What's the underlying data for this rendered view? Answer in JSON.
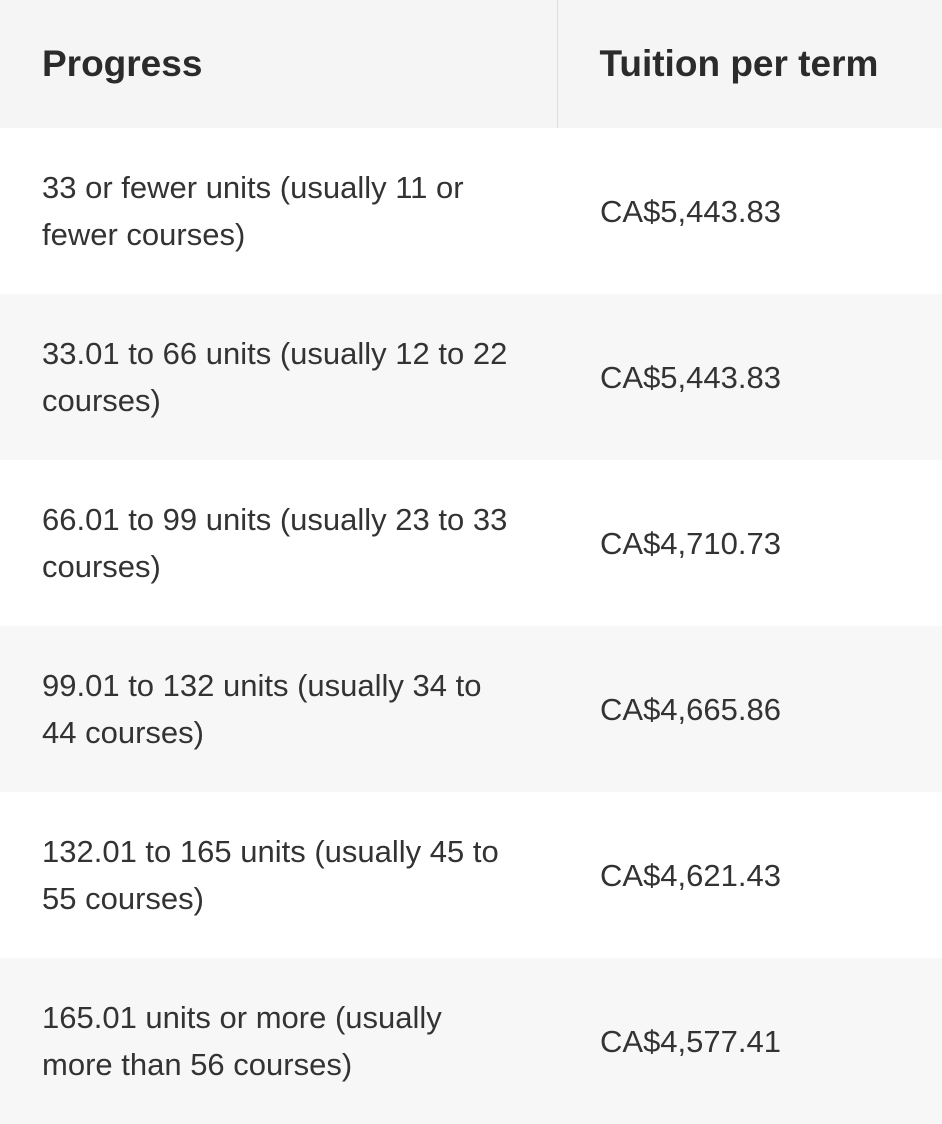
{
  "table": {
    "headers": {
      "progress": "Progress",
      "tuition": "Tuition per term"
    },
    "rows": [
      {
        "progress": "33 or fewer units (usually 11 or fewer courses)",
        "tuition": "CA$5,443.83"
      },
      {
        "progress": "33.01 to 66 units (usually 12 to 22 courses)",
        "tuition": "CA$5,443.83"
      },
      {
        "progress": "66.01 to 99 units (usually 23 to 33 courses)",
        "tuition": "CA$4,710.73"
      },
      {
        "progress": "99.01 to 132 units (usually 34 to 44 courses)",
        "tuition": "CA$4,665.86"
      },
      {
        "progress": "132.01 to 165 units (usually 45 to 55 courses)",
        "tuition": "CA$4,621.43"
      },
      {
        "progress": "165.01 units or more (usually more than 56 courses)",
        "tuition": "CA$4,577.41"
      }
    ]
  }
}
